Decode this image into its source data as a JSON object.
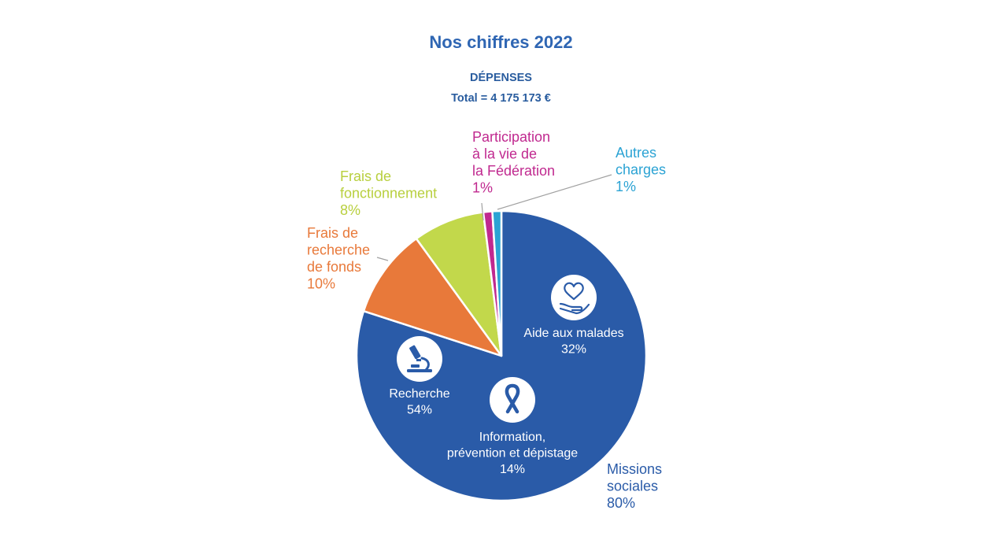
{
  "page": {
    "title": "Nos chiffres 2022",
    "subtitle": "DÉPENSES",
    "total": "Total = 4 175 173 €"
  },
  "chart_data": {
    "type": "pie",
    "title": "Nos chiffres 2022",
    "subtitle": "DÉPENSES",
    "total_label": "Total = 4 175 173 €",
    "slices": [
      {
        "id": "missions",
        "label": [
          "Missions",
          "sociales"
        ],
        "pct_label": "80%",
        "value": 80,
        "color": "#2a5ba8",
        "label_color": "#2a5ba8"
      },
      {
        "id": "frais-recherche",
        "label": [
          "Frais de",
          "recherche",
          "de fonds"
        ],
        "pct_label": "10%",
        "value": 10,
        "color": "#e8793a",
        "label_color": "#e8793a"
      },
      {
        "id": "frais-fonctionnement",
        "label": [
          "Frais de",
          "fonctionnement"
        ],
        "pct_label": "8%",
        "value": 8,
        "color": "#c2d84b",
        "label_color": "#b8cf3e"
      },
      {
        "id": "participation",
        "label": [
          "Participation",
          "à la vie de",
          "la Fédération"
        ],
        "pct_label": "1%",
        "value": 1,
        "color": "#c0298f",
        "label_color": "#c0298f"
      },
      {
        "id": "autres",
        "label": [
          "Autres",
          "charges"
        ],
        "pct_label": "1%",
        "value": 1,
        "color": "#2ba3d4",
        "label_color": "#2ba3d4"
      }
    ],
    "missions_breakdown": [
      {
        "id": "aide",
        "label": [
          "Aide aux malades"
        ],
        "pct_label": "32%",
        "value": 32,
        "icon": "heart-hand-icon"
      },
      {
        "id": "information",
        "label": [
          "Information,",
          "prévention et dépistage"
        ],
        "pct_label": "14%",
        "value": 14,
        "icon": "ribbon-icon"
      },
      {
        "id": "recherche",
        "label": [
          "Recherche"
        ],
        "pct_label": "54%",
        "value": 54,
        "icon": "microscope-icon"
      }
    ]
  }
}
